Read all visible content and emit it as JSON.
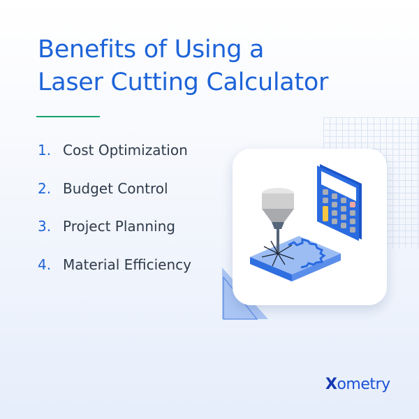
{
  "title": {
    "line1": "Benefits of Using a",
    "line2": "Laser Cutting Calculator"
  },
  "benefits": [
    {
      "number": "1.",
      "label": "Cost Optimization"
    },
    {
      "number": "2.",
      "label": "Budget Control"
    },
    {
      "number": "3.",
      "label": "Project Planning"
    },
    {
      "number": "4.",
      "label": "Material Efficiency"
    }
  ],
  "illustration": {
    "icons": [
      "laser-cutter-icon",
      "calculator-icon",
      "gear-outline-icon"
    ]
  },
  "brand": {
    "logo_text": "Xometry",
    "logo_x": "X",
    "logo_rest": "ometry"
  },
  "colors": {
    "accent": "#1d63d8",
    "divider": "#18a36b",
    "text": "#2f3b4a"
  }
}
